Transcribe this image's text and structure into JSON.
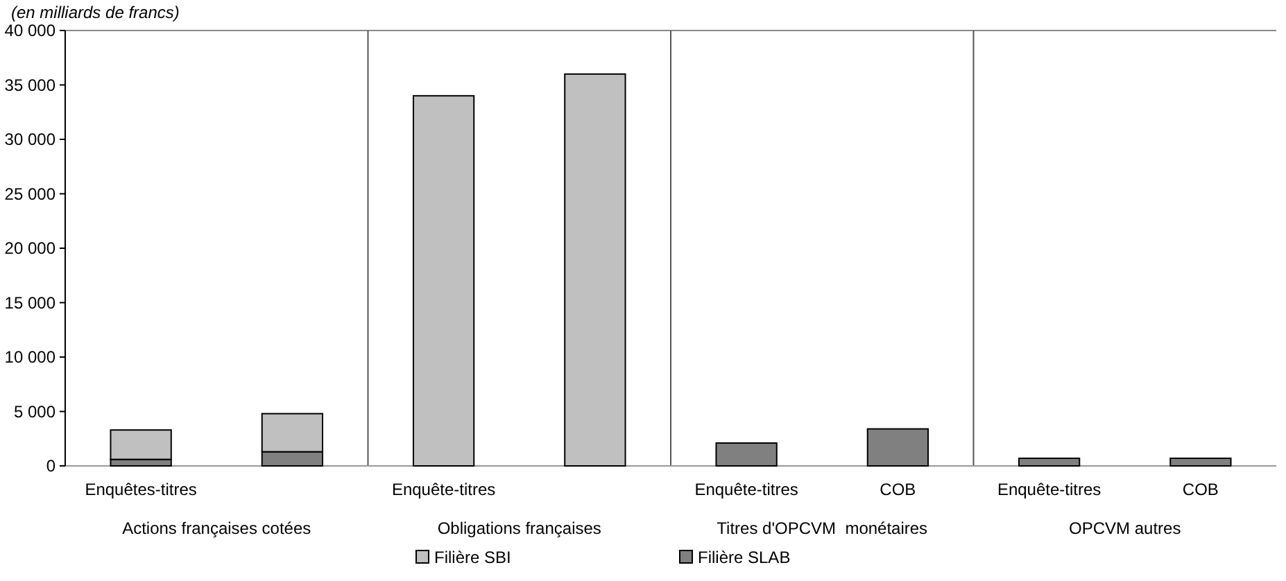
{
  "chart_data": {
    "type": "bar",
    "title": "(en milliards de francs)",
    "stacked": true,
    "categories": [
      "Enquêtes-titres",
      null,
      "Enquête-titres",
      null,
      "Enquête-titres",
      "COB",
      "Enquête-titres",
      "COB"
    ],
    "series": [
      {
        "name": "Filière SLAB",
        "color": "#808080",
        "values": [
          600,
          1300,
          null,
          null,
          2100,
          3400,
          700,
          700
        ]
      },
      {
        "name": "Filière SBI",
        "color": "#c0c0c0",
        "values": [
          2700,
          3500,
          34000,
          36000,
          0,
          0,
          0,
          0
        ]
      }
    ],
    "ylim": [
      0,
      40000
    ],
    "yticks": [
      {
        "value": 0,
        "label": "0"
      },
      {
        "value": 5000,
        "label": "5 000"
      },
      {
        "value": 10000,
        "label": "10 000"
      },
      {
        "value": 15000,
        "label": "15 000"
      },
      {
        "value": 20000,
        "label": "20 000"
      },
      {
        "value": 25000,
        "label": "25 000"
      },
      {
        "value": 30000,
        "label": "30 000"
      },
      {
        "value": 35000,
        "label": "35 000"
      },
      {
        "value": 40000,
        "label": "40 000"
      }
    ],
    "annotations": [
      "Actions françaises cotées",
      "Obligations françaises",
      "Titres d'OPCVM  monétaires",
      "OPCVM autres"
    ],
    "legend": "bottom",
    "grid": false
  }
}
